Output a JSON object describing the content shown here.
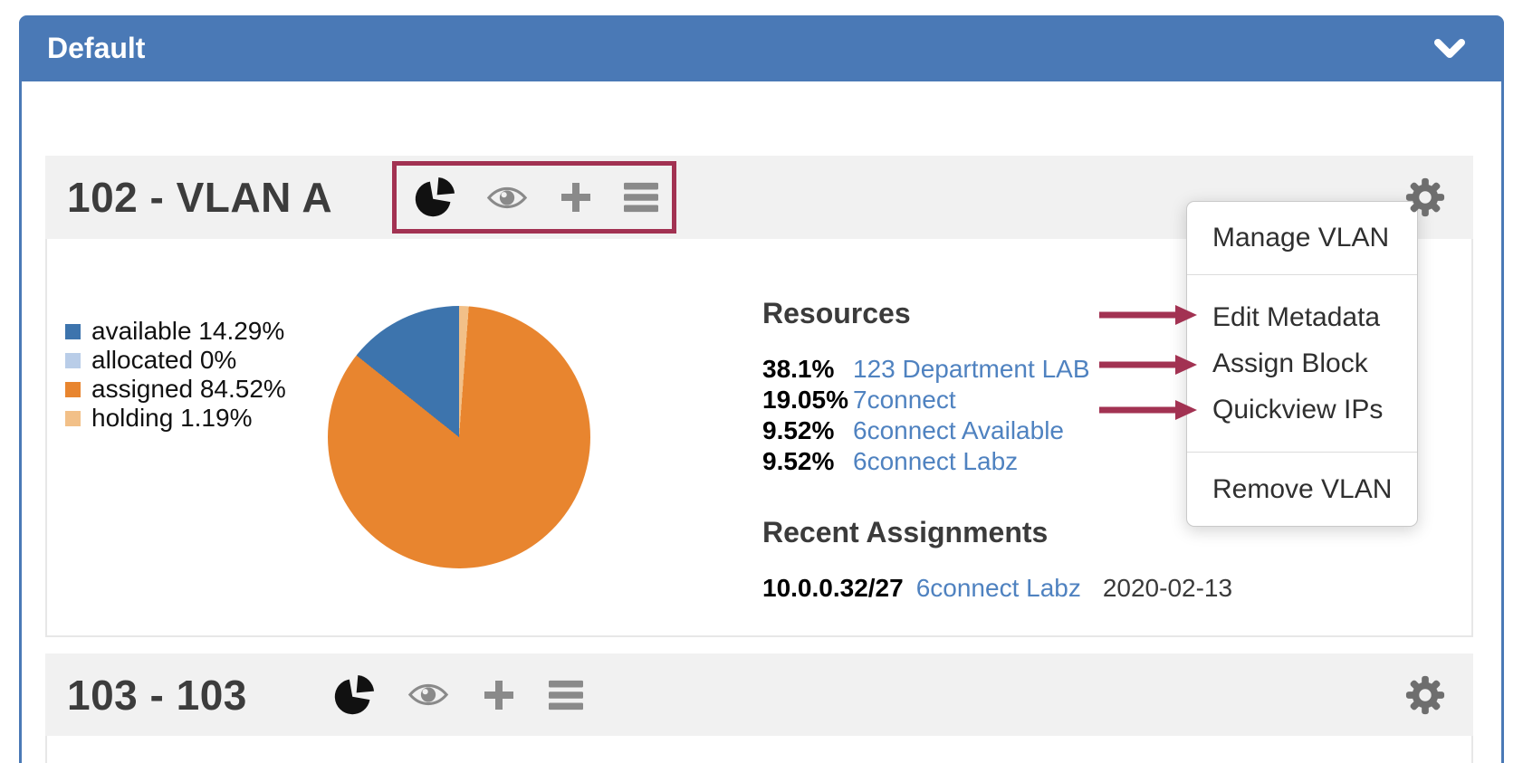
{
  "colors": {
    "header_blue": "#4a79b6",
    "annotation": "#a23252",
    "link_blue": "#4f82c0",
    "section_header_bg": "#f1f1f1",
    "icon_gray": "#8a8a8a",
    "gear_gray": "#6e6e6e"
  },
  "panel": {
    "title": "Default",
    "collapse_icon": "chevron-down-icon"
  },
  "chart_data": {
    "type": "pie",
    "slices": [
      {
        "label": "available",
        "value": 14.29,
        "color": "#3d74ad"
      },
      {
        "label": "allocated",
        "value": 0,
        "color": "#b9cde8"
      },
      {
        "label": "assigned",
        "value": 84.52,
        "color": "#e8852f"
      },
      {
        "label": "holding",
        "value": 1.19,
        "color": "#f2c088"
      }
    ],
    "legend_position": "left",
    "start_angle": "top",
    "direction": "counterclockwise"
  },
  "sections": [
    {
      "title": "102 - VLAN A",
      "toolbar_icons": [
        "pie-chart-icon",
        "eye-icon",
        "plus-icon",
        "menu-icon"
      ],
      "gear_icon": "gear-icon",
      "resources": {
        "heading": "Resources",
        "rows": [
          {
            "percent": "38.1%",
            "link": "123 Department LAB"
          },
          {
            "percent": "19.05%",
            "link": "7connect"
          },
          {
            "percent": "9.52%",
            "link": "6connect Available"
          },
          {
            "percent": "9.52%",
            "link": "6connect Labz"
          }
        ]
      },
      "recent_assignments": {
        "heading": "Recent Assignments",
        "rows": [
          {
            "cidr": "10.0.0.32/27",
            "link": "6connect Labz",
            "date": "2020-02-13"
          }
        ]
      }
    },
    {
      "title": "103 - 103",
      "toolbar_icons": [
        "pie-chart-icon",
        "eye-icon",
        "plus-icon",
        "menu-icon"
      ],
      "gear_icon": "gear-icon"
    }
  ],
  "gear_menu": {
    "items": [
      {
        "label": "Manage VLAN",
        "arrow": false
      },
      {
        "label": "Edit Metadata",
        "arrow": true
      },
      {
        "label": "Assign Block",
        "arrow": true
      },
      {
        "label": "Quickview IPs",
        "arrow": true
      },
      {
        "label": "Remove VLAN",
        "arrow": false
      }
    ]
  }
}
